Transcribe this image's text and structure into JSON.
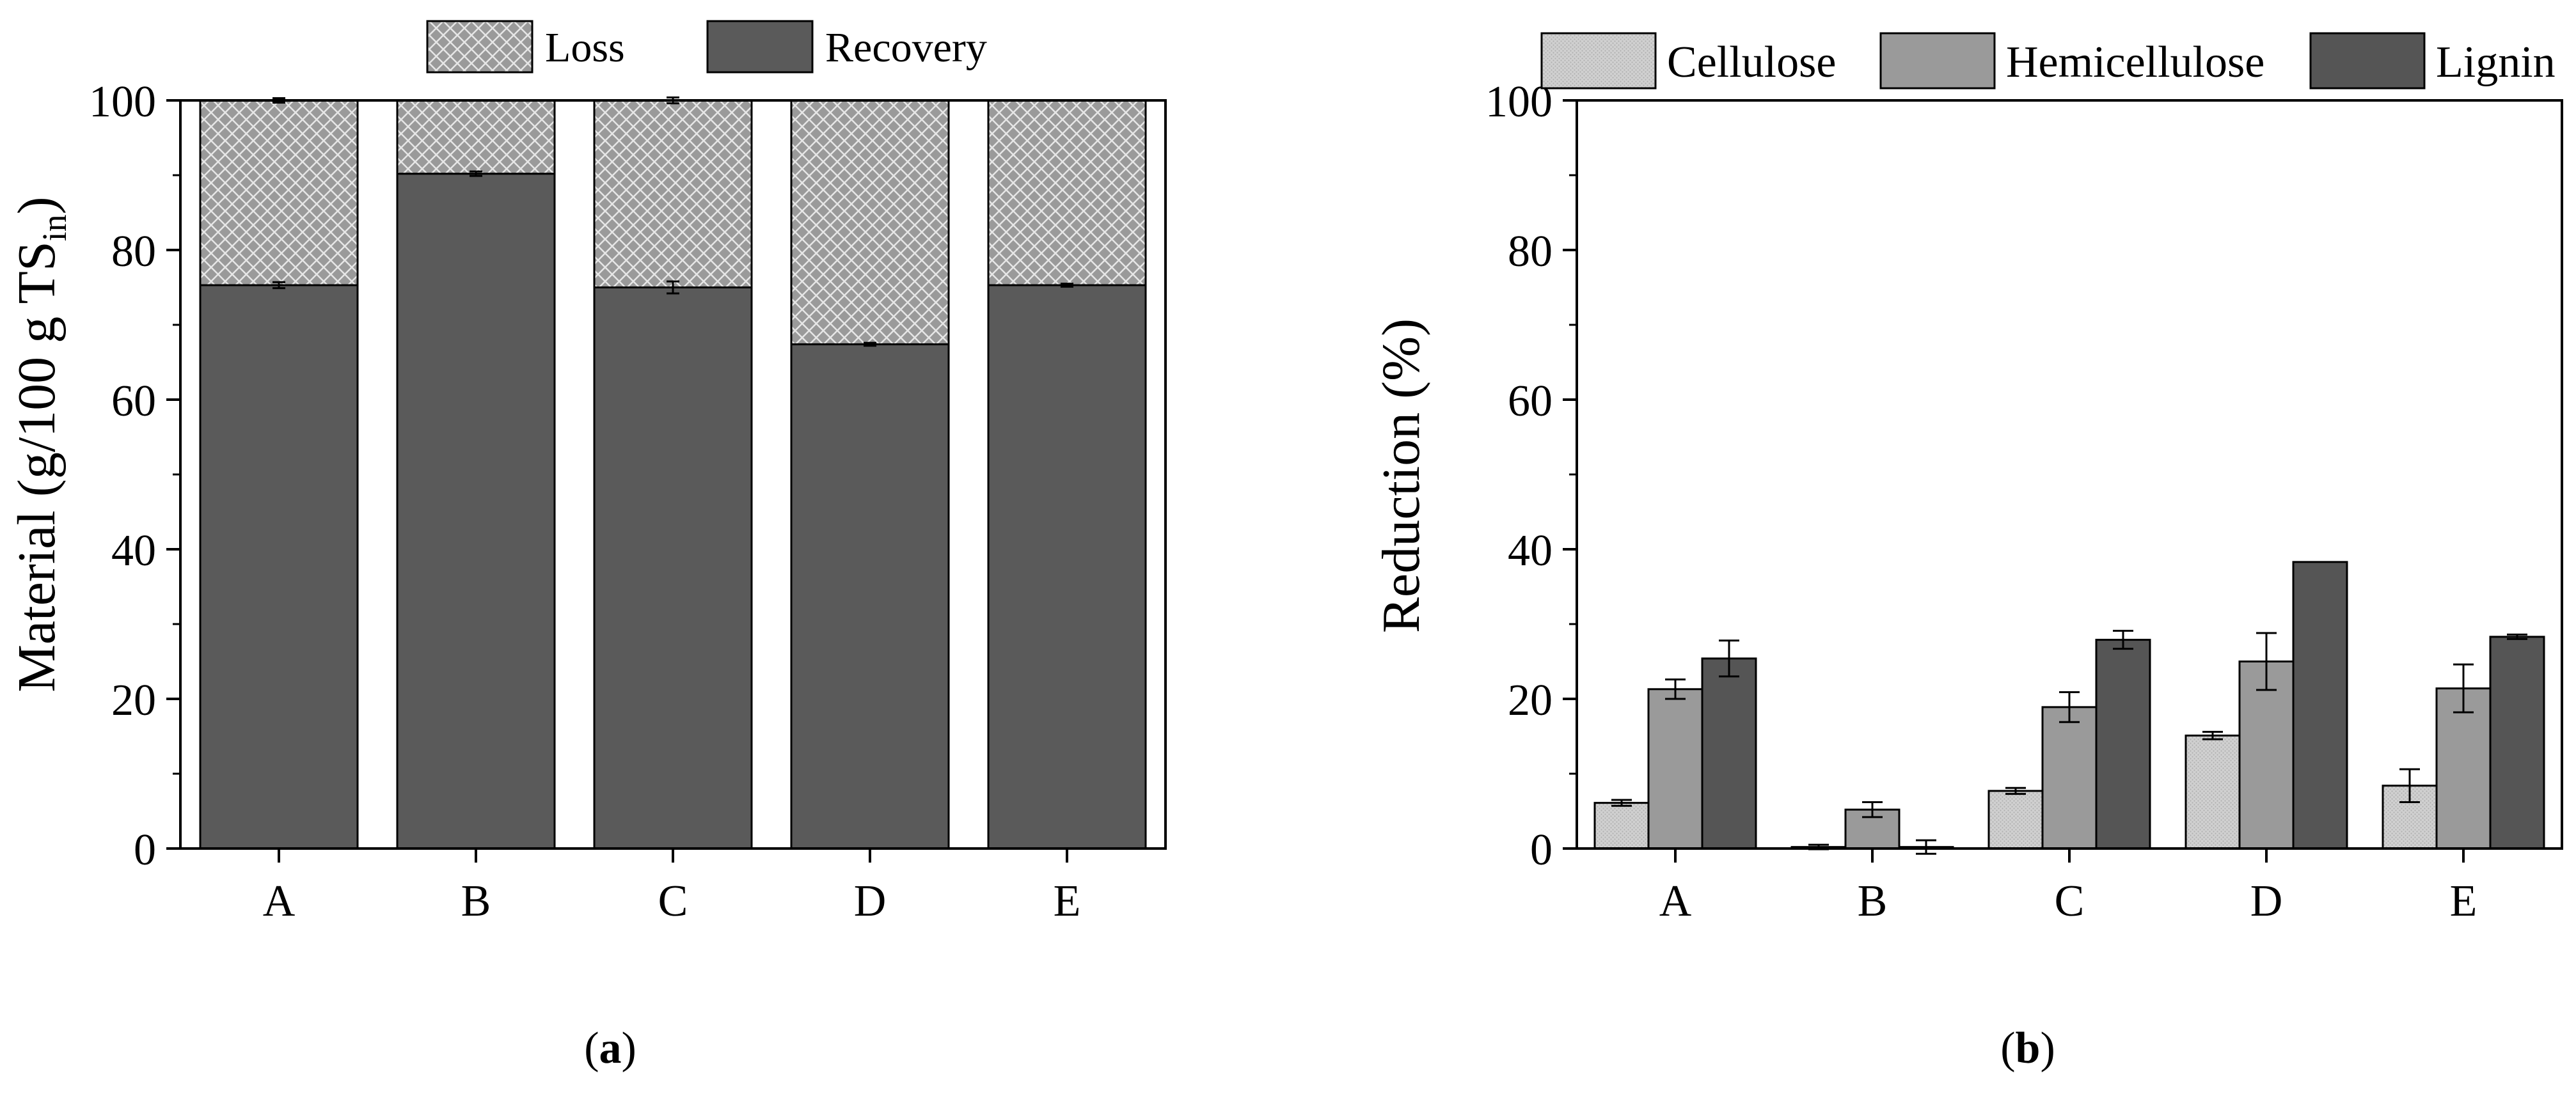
{
  "colors": {
    "recovery": "#5a5a5a",
    "loss": "#9a9a9a",
    "cellulose": "#d0d0d0",
    "hemicellulose": "#9a9a9a",
    "lignin": "#555555",
    "axis": "#000000"
  },
  "chart_data": [
    {
      "type": "bar",
      "stacked": true,
      "panel_label": "(a)",
      "panel_letter": "a",
      "categories": [
        "A",
        "B",
        "C",
        "D",
        "E"
      ],
      "series": [
        {
          "name": "Recovery",
          "values": [
            75.3,
            90.2,
            75.0,
            67.4,
            75.3
          ],
          "errors": [
            0.4,
            0.3,
            0.8,
            0.2,
            0.2
          ]
        },
        {
          "name": "Loss",
          "values": [
            24.7,
            9.8,
            25.0,
            32.6,
            24.7
          ],
          "errors": [
            0.3,
            0,
            0.4,
            0,
            0
          ]
        }
      ],
      "legend": [
        "Loss",
        "Recovery"
      ],
      "legend_position": "top-center",
      "ylabel_main": "Material (g/100 g TS",
      "ylabel_sub": "in",
      "ylabel_end": ")",
      "ylim": [
        0,
        100
      ],
      "yticks": [
        0,
        20,
        40,
        60,
        80,
        100
      ]
    },
    {
      "type": "bar",
      "grouped": true,
      "panel_label": "(b)",
      "panel_letter": "b",
      "categories": [
        "A",
        "B",
        "C",
        "D",
        "E"
      ],
      "series": [
        {
          "name": "Cellulose",
          "values": [
            6.1,
            0.2,
            7.7,
            15.1,
            8.4
          ],
          "errors": [
            0.4,
            0.3,
            0.4,
            0.5,
            2.2
          ]
        },
        {
          "name": "Hemicellulose",
          "values": [
            21.3,
            5.2,
            18.9,
            25.0,
            21.4
          ],
          "errors": [
            1.3,
            1.0,
            2.0,
            3.8,
            3.2
          ]
        },
        {
          "name": "Lignin",
          "values": [
            25.4,
            0.2,
            27.9,
            38.3,
            28.3
          ],
          "errors": [
            2.4,
            0.9,
            1.2,
            0,
            0.3
          ]
        }
      ],
      "legend": [
        "Cellulose",
        "Hemicellulose",
        "Lignin"
      ],
      "legend_position": "top",
      "ylabel": "Reduction (%)",
      "ylim": [
        0,
        100
      ],
      "yticks": [
        0,
        20,
        40,
        60,
        80,
        100
      ]
    }
  ]
}
